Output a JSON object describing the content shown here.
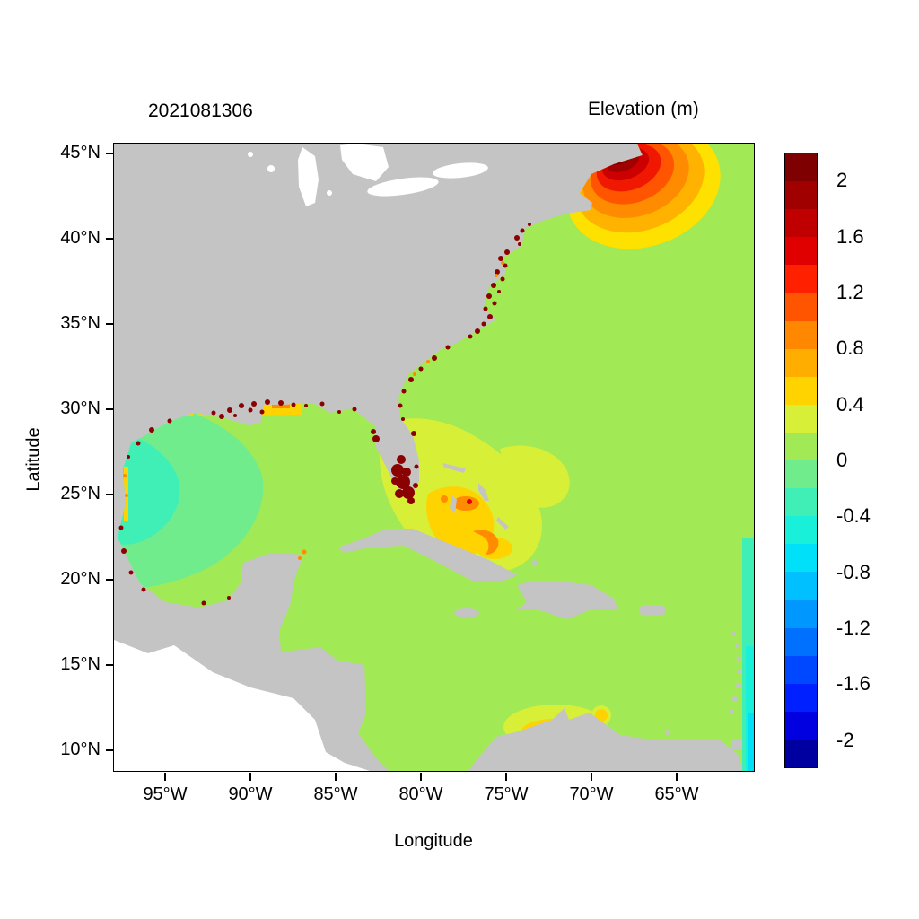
{
  "figure": {
    "left_title": "2021081306",
    "right_title": "Elevation (m)"
  },
  "chart_data": {
    "type": "heatmap",
    "subtype": "geographic_elevation_contour_map",
    "title": "2021081306",
    "colorbar_title": "Elevation (m)",
    "xlabel": "Longitude",
    "ylabel": "Latitude",
    "x_ticks": [
      {
        "label": "95°W",
        "value": 95
      },
      {
        "label": "90°W",
        "value": 90
      },
      {
        "label": "85°W",
        "value": 85
      },
      {
        "label": "80°W",
        "value": 80
      },
      {
        "label": "75°W",
        "value": 75
      },
      {
        "label": "70°W",
        "value": 70
      },
      {
        "label": "65°W",
        "value": 65
      }
    ],
    "y_ticks": [
      {
        "label": "45°N",
        "value": 45
      },
      {
        "label": "40°N",
        "value": 40
      },
      {
        "label": "35°N",
        "value": 35
      },
      {
        "label": "30°N",
        "value": 30
      },
      {
        "label": "25°N",
        "value": 25
      },
      {
        "label": "20°N",
        "value": 20
      },
      {
        "label": "15°N",
        "value": 15
      },
      {
        "label": "10°N",
        "value": 10
      }
    ],
    "x_range_deg_west": [
      98,
      60.5
    ],
    "y_range_deg_north": [
      8.8,
      45.6
    ],
    "colorbar": {
      "tick_labels": [
        "2",
        "1.6",
        "1.2",
        "0.8",
        "0.4",
        "0",
        "-0.4",
        "-0.8",
        "-1.2",
        "-1.6",
        "-2"
      ],
      "tick_values": [
        2,
        1.6,
        1.2,
        0.8,
        0.4,
        0,
        -0.4,
        -0.8,
        -1.2,
        -1.6,
        -2
      ],
      "value_range": [
        -2.2,
        2.2
      ],
      "segment_step": 0.2,
      "colors_top_to_bottom": [
        "#7F0000",
        "#A00000",
        "#C00000",
        "#E00000",
        "#FF2000",
        "#FF5500",
        "#FF8800",
        "#FFAE00",
        "#FFD300",
        "#D7EF36",
        "#A2E956",
        "#70EC8D",
        "#3FEFB5",
        "#19F0D9",
        "#00E0F8",
        "#00C0FF",
        "#0098FF",
        "#0070FF",
        "#0048FF",
        "#0020FF",
        "#0000E0",
        "#0000A0"
      ]
    },
    "map_colors": {
      "land": "#C4C4C4",
      "no_data": "#FFFFFF",
      "ocean_near_zero": "#A2E956"
    },
    "features": [
      {
        "name": "surge_maximum",
        "approx_location": "~67W 43.5N Gulf of Maine / Bay of Fundy",
        "elevation_m": "2+"
      },
      {
        "name": "coastal_flooding_speckles",
        "approx_location": "US East Coast, northern Gulf Coast, SW Florida",
        "elevation_m": "2+"
      },
      {
        "name": "set_down_region",
        "approx_location": "western Gulf of Mexico ~95W 25N",
        "elevation_m": "-0.2 to -0.4"
      },
      {
        "name": "set_up_region",
        "approx_location": "Bahamas / north of Cuba ~77W 23N",
        "elevation_m": "0.4 to 1.0"
      },
      {
        "name": "set_up_region",
        "approx_location": "Colombian coast ~73W 11N",
        "elevation_m": "0.4 to 0.6"
      },
      {
        "name": "open_boundary_set_down",
        "approx_location": "eastern map edge ~60.5W 10-22N",
        "elevation_m": "-0.4 to -0.8"
      }
    ]
  }
}
